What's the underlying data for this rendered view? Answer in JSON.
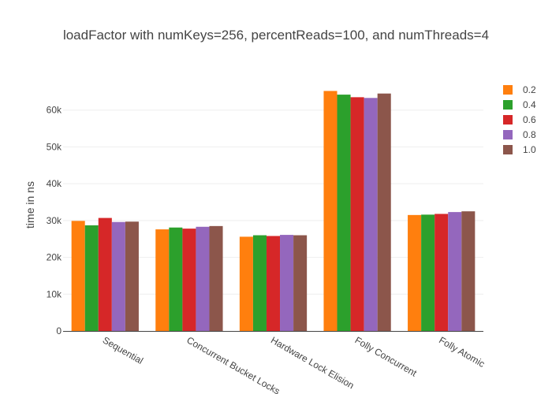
{
  "chart_data": {
    "type": "bar",
    "title": "loadFactor with numKeys=256, percentReads=100, and numThreads=4",
    "xlabel": "",
    "ylabel": "time in ns",
    "ylim": [
      0,
      70000
    ],
    "yticks": [
      0,
      10000,
      20000,
      30000,
      40000,
      50000,
      60000
    ],
    "ytick_labels": [
      "0",
      "10k",
      "20k",
      "30k",
      "40k",
      "50k",
      "60k"
    ],
    "categories": [
      "Sequential",
      "Concurrent Bucket Locks",
      "Hardware Lock Elision",
      "Folly Concurrent",
      "Folly Atomic"
    ],
    "legend_position": "top-right",
    "grid": true,
    "series": [
      {
        "name": "0.2",
        "color": "#ff7f0e",
        "values": [
          29900,
          27600,
          25600,
          65200,
          31500
        ]
      },
      {
        "name": "0.4",
        "color": "#2ca02c",
        "values": [
          28700,
          28100,
          26000,
          64200,
          31600
        ]
      },
      {
        "name": "0.6",
        "color": "#d62728",
        "values": [
          30700,
          27800,
          25800,
          63500,
          31800
        ]
      },
      {
        "name": "0.8",
        "color": "#9467bd",
        "values": [
          29600,
          28300,
          26100,
          63300,
          32300
        ]
      },
      {
        "name": "1.0",
        "color": "#8c564b",
        "values": [
          29700,
          28500,
          26000,
          64500,
          32500
        ]
      }
    ]
  }
}
